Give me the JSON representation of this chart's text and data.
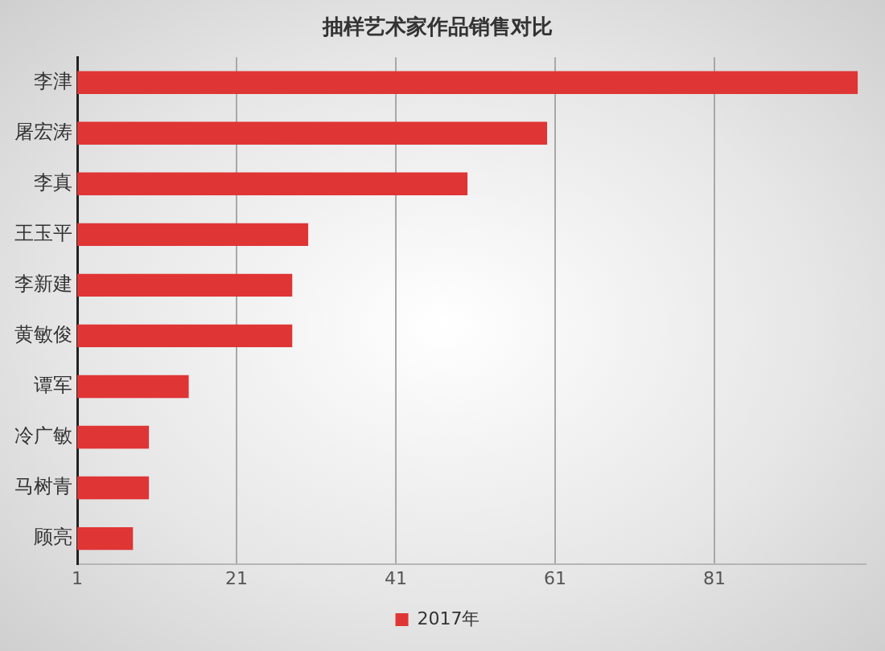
{
  "chart_data": {
    "type": "bar",
    "orientation": "horizontal",
    "title": "抽样艺术家作品销售对比",
    "categories": [
      "李津",
      "屠宏涛",
      "李真",
      "王玉平",
      "李新建",
      "黄敏俊",
      "谭军",
      "冷广敏",
      "马树青",
      "顾亮"
    ],
    "series": [
      {
        "name": "2017年",
        "color": "#e03535",
        "values": [
          99,
          60,
          50,
          30,
          28,
          28,
          15,
          10,
          10,
          8
        ]
      }
    ],
    "xlim": [
      1,
      100
    ],
    "xticks": [
      1,
      21,
      41,
      61,
      81
    ],
    "grid": "x",
    "legend": "bottom"
  }
}
